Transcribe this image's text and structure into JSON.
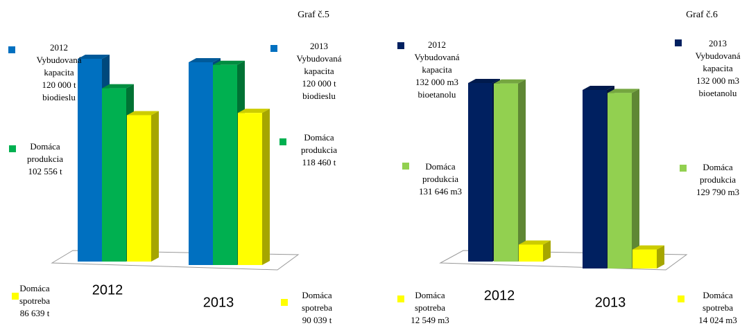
{
  "chart_data": [
    {
      "type": "bar3d",
      "title": "Graf č.5",
      "categories": [
        "2012",
        "2013"
      ],
      "ylim": [
        0,
        120000
      ],
      "series": [
        {
          "name": "Vybudovaná kapacita",
          "color": "#0070c0",
          "values": [
            120000,
            120000
          ],
          "value_labels": [
            "120 000 t",
            "120 000 t"
          ],
          "note": "biodieslu"
        },
        {
          "name": "Domáca produkcia",
          "color": "#00b050",
          "values": [
            102556,
            118460
          ],
          "value_labels": [
            "102 556 t",
            "118 460 t"
          ]
        },
        {
          "name": "Domáca spotreba",
          "color": "#ffff00",
          "values": [
            86639,
            90039
          ],
          "value_labels": [
            "86 639 t",
            "90 039 t"
          ]
        }
      ]
    },
    {
      "type": "bar3d",
      "title": "Graf č.6",
      "categories": [
        "2012",
        "2013"
      ],
      "ylim": [
        0,
        132000
      ],
      "series": [
        {
          "name": "Vybudovaná kapacita",
          "color": "#002060",
          "values": [
            132000,
            132000
          ],
          "value_labels": [
            "132 000 m3",
            "132 000 m3"
          ],
          "note": "bioetanolu"
        },
        {
          "name": "Domáca produkcia",
          "color": "#92d050",
          "values": [
            131646,
            129790
          ],
          "value_labels": [
            "131 646 m3",
            "129 790 m3"
          ]
        },
        {
          "name": "Domáca spotreba",
          "color": "#ffff00",
          "values": [
            12549,
            14024
          ],
          "value_labels": [
            "12 549  m3",
            "14 024 m3"
          ]
        }
      ]
    }
  ]
}
